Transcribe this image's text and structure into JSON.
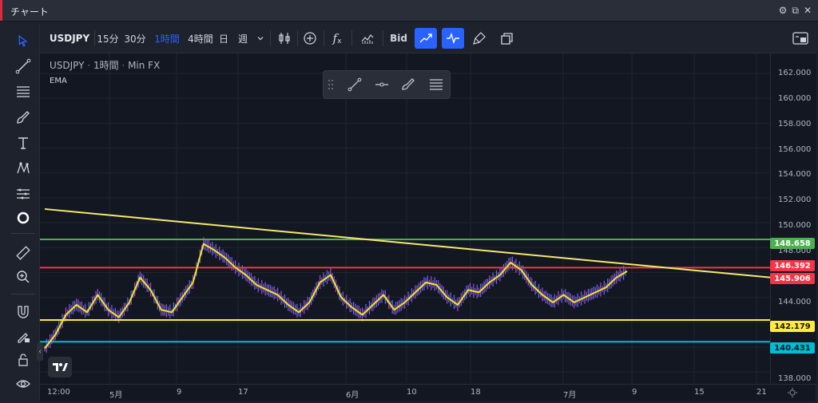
{
  "window": {
    "title": "チャート",
    "accent": "#e0283c"
  },
  "toolbar": {
    "symbol": "USDJPY",
    "intervals": [
      "15分",
      "30分",
      "1時間",
      "4時間",
      "日",
      "週"
    ],
    "active_interval": "1時間",
    "bid_label": "Bid"
  },
  "legend": {
    "symbol": "USDJPY",
    "interval": "1時間",
    "source": "Min FX",
    "indicator": "EMA"
  },
  "price_axis": {
    "ticks": [
      "162.000",
      "160.000",
      "158.000",
      "156.000",
      "154.000",
      "152.000",
      "150.000",
      "148.000",
      "144.000",
      "138.000"
    ]
  },
  "time_axis": {
    "ticks": [
      "12:00",
      "5月",
      "9",
      "17",
      "6月",
      "10",
      "18",
      "7月",
      "9",
      "15",
      "21"
    ]
  },
  "levels": [
    {
      "value": "148.658",
      "color": "#4caf50",
      "text_color": "#ffffff"
    },
    {
      "value": "146.392",
      "color": "#f23645",
      "text_color": "#ffffff"
    },
    {
      "value": "145.906",
      "color": "#f23645",
      "text_color": "#ffffff"
    },
    {
      "value": "142.179",
      "color": "#ffeb3b",
      "text_color": "#131722"
    },
    {
      "value": "140.431",
      "color": "#00bcd4",
      "text_color": "#131722"
    }
  ],
  "colors": {
    "ema": "#f5e61b",
    "candles": "#5b6ef5",
    "candle_alt": "#c53cc8",
    "trendline": "#f5e96b"
  },
  "chart_data": {
    "type": "line",
    "title": "",
    "xlabel": "",
    "ylabel": "",
    "ylim": [
      138,
      163
    ],
    "series": [
      {
        "values": [
          139.9,
          141.0,
          142.6,
          143.4,
          142.8,
          144.2,
          143.0,
          142.4,
          143.6,
          145.6,
          144.6,
          143.0,
          142.8,
          144.0,
          145.2,
          148.3,
          147.8,
          147.2,
          146.4,
          145.8,
          145.0,
          144.6,
          144.2,
          143.4,
          142.8,
          143.6,
          145.2,
          145.8,
          144.0,
          143.2,
          142.6,
          143.4,
          144.2,
          143.0,
          143.6,
          144.4,
          145.2,
          145.0,
          144.0,
          143.4,
          144.6,
          144.4,
          145.2,
          145.8,
          146.8,
          146.2,
          145.0,
          144.2,
          143.6,
          144.2,
          143.6,
          144.0,
          144.4,
          144.8,
          145.6,
          146.1
        ]
      }
    ]
  }
}
